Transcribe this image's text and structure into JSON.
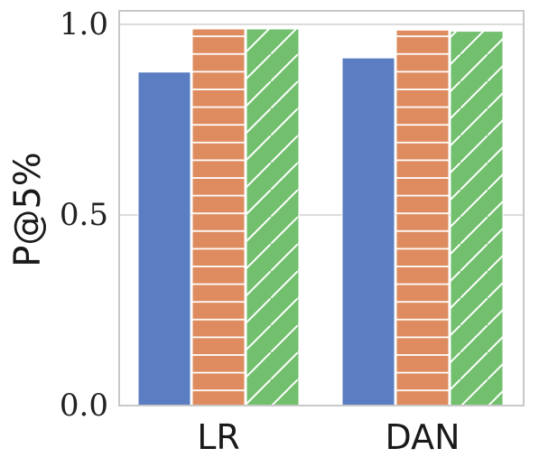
{
  "chart_data": {
    "type": "bar",
    "title": "",
    "xlabel": "",
    "ylabel": "P@5%",
    "categories": [
      "LR",
      "DAN"
    ],
    "series": [
      {
        "values": [
          0.875,
          0.912
        ],
        "color": "#5b7ec2",
        "pattern": "solid"
      },
      {
        "values": [
          0.988,
          0.985
        ],
        "color": "#de8c5f",
        "pattern": "horizontal-lines"
      },
      {
        "values": [
          0.988,
          0.982
        ],
        "color": "#72bf6e",
        "pattern": "diagonal-lines"
      }
    ],
    "ylim": [
      0,
      1.02
    ],
    "yticks": [
      "0.0",
      "0.5",
      "1.0"
    ],
    "ytick_values": [
      0.0,
      0.5,
      1.0
    ],
    "grid": true,
    "legend": "none"
  }
}
